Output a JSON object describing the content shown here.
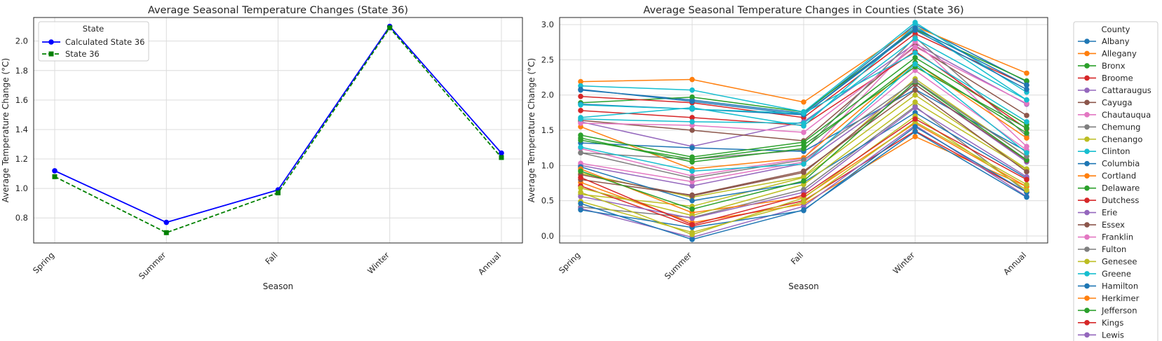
{
  "chart_data": [
    {
      "type": "line",
      "title": "Average Seasonal Temperature Changes (State 36)",
      "xlabel": "Season",
      "ylabel": "Average Temperature Change (°C)",
      "categories": [
        "Spring",
        "Summer",
        "Fall",
        "Winter",
        "Annual"
      ],
      "ylim": [
        0.63,
        2.16
      ],
      "yticks": [
        0.8,
        1.0,
        1.2,
        1.4,
        1.6,
        1.8,
        2.0
      ],
      "grid": true,
      "legend": {
        "title": "State",
        "placement": "top-left"
      },
      "series": [
        {
          "name": "Calculated State 36",
          "values": [
            1.12,
            0.77,
            0.99,
            2.1,
            1.24
          ],
          "color": "#0000ff",
          "marker": "circle",
          "dash": "solid"
        },
        {
          "name": "State 36",
          "values": [
            1.08,
            0.7,
            0.97,
            2.09,
            1.21
          ],
          "color": "#008000",
          "marker": "square",
          "dash": "dashed"
        }
      ]
    },
    {
      "type": "line",
      "title": "Average Seasonal Temperature Changes in Counties (State 36)",
      "xlabel": "Season",
      "ylabel": "Average Temperature Change (°C)",
      "categories": [
        "Spring",
        "Summer",
        "Fall",
        "Winter",
        "Annual"
      ],
      "ylim": [
        -0.1,
        3.1
      ],
      "yticks": [
        0.0,
        0.5,
        1.0,
        1.5,
        2.0,
        2.5,
        3.0
      ],
      "grid": true,
      "legend": {
        "title": "County",
        "placement": "outside-right"
      },
      "series": [
        {
          "name": "Albany",
          "values": [
            2.07,
            1.93,
            1.74,
            3.0,
            2.19
          ],
          "color": "#1f77b4"
        },
        {
          "name": "Allegany",
          "values": [
            2.19,
            2.22,
            1.9,
            2.97,
            2.31
          ],
          "color": "#ff7f0e"
        },
        {
          "name": "Bronx",
          "values": [
            1.89,
            1.97,
            1.76,
            2.93,
            2.2
          ],
          "color": "#2ca02c"
        },
        {
          "name": "Broome",
          "values": [
            1.98,
            1.89,
            1.68,
            2.87,
            2.14
          ],
          "color": "#d62728"
        },
        {
          "name": "Cattaraugus",
          "values": [
            1.62,
            1.27,
            1.62,
            2.73,
            1.87
          ],
          "color": "#9467bd"
        },
        {
          "name": "Cayuga",
          "values": [
            1.64,
            1.5,
            1.35,
            2.7,
            1.71
          ],
          "color": "#8c564b"
        },
        {
          "name": "Chautauqua",
          "values": [
            1.24,
            0.85,
            1.1,
            2.76,
            1.27
          ],
          "color": "#e377c2"
        },
        {
          "name": "Chemung",
          "values": [
            1.18,
            1.09,
            1.22,
            2.82,
            1.42
          ],
          "color": "#7f7f7f"
        },
        {
          "name": "Chenango",
          "values": [
            0.89,
            0.55,
            0.84,
            2.23,
            1.13
          ],
          "color": "#bcbd22"
        },
        {
          "name": "Clinton",
          "values": [
            2.13,
            2.07,
            1.76,
            3.03,
            2.04
          ],
          "color": "#17becf"
        },
        {
          "name": "Columbia",
          "values": [
            1.32,
            1.25,
            1.2,
            2.08,
            1.2
          ],
          "color": "#1f77b4"
        },
        {
          "name": "Cortland",
          "values": [
            1.55,
            0.95,
            1.11,
            2.46,
            1.39
          ],
          "color": "#ff7f0e"
        },
        {
          "name": "Delaware",
          "values": [
            1.43,
            1.12,
            1.33,
            2.53,
            1.58
          ],
          "color": "#2ca02c"
        },
        {
          "name": "Dutchess",
          "values": [
            1.78,
            1.68,
            1.57,
            2.62,
            1.52
          ],
          "color": "#d62728"
        },
        {
          "name": "Erie",
          "values": [
            1.0,
            0.71,
            1.03,
            2.15,
            1.05
          ],
          "color": "#9467bd"
        },
        {
          "name": "Essex",
          "values": [
            0.87,
            0.57,
            0.9,
            2.15,
            1.07
          ],
          "color": "#8c564b"
        },
        {
          "name": "Franklin",
          "values": [
            1.03,
            0.77,
            1.05,
            2.35,
            1.22
          ],
          "color": "#e377c2"
        },
        {
          "name": "Fulton",
          "values": [
            0.41,
            0.26,
            0.66,
            1.84,
            0.62
          ],
          "color": "#7f7f7f"
        },
        {
          "name": "Genesee",
          "values": [
            0.59,
            0.42,
            0.83,
            2.0,
            0.95
          ],
          "color": "#bcbd22"
        },
        {
          "name": "Greene",
          "values": [
            1.68,
            1.82,
            1.56,
            2.98,
            1.93
          ],
          "color": "#17becf"
        },
        {
          "name": "Hamilton",
          "values": [
            0.98,
            0.5,
            0.76,
            1.75,
            0.82
          ],
          "color": "#1f77b4"
        },
        {
          "name": "Herkimer",
          "values": [
            0.76,
            0.19,
            0.45,
            1.41,
            0.7
          ],
          "color": "#ff7f0e"
        },
        {
          "name": "Jefferson",
          "values": [
            1.39,
            1.05,
            1.24,
            2.46,
            1.46
          ],
          "color": "#2ca02c"
        },
        {
          "name": "Kings",
          "values": [
            0.71,
            0.14,
            0.5,
            1.49,
            0.62
          ],
          "color": "#d62728"
        },
        {
          "name": "Lewis",
          "values": [
            0.39,
            -0.02,
            0.42,
            1.57,
            0.56
          ],
          "color": "#9467bd"
        },
        {
          "name": "",
          "values": [
            1.87,
            1.8,
            1.72,
            2.92,
            2.08
          ],
          "color": "#1f77b4"
        },
        {
          "name": "",
          "values": [
            2.08,
            1.91,
            1.72,
            2.95,
            2.14
          ],
          "color": "#1f77b4"
        },
        {
          "name": "",
          "values": [
            1.6,
            1.57,
            1.47,
            2.68,
            1.88
          ],
          "color": "#e377c2"
        },
        {
          "name": "",
          "values": [
            1.86,
            1.8,
            1.74,
            2.6,
            1.62
          ],
          "color": "#17becf"
        },
        {
          "name": "",
          "values": [
            1.36,
            1.09,
            1.29,
            2.4,
            1.53
          ],
          "color": "#2ca02c"
        },
        {
          "name": "",
          "values": [
            1.66,
            1.62,
            1.6,
            2.8,
            1.93
          ],
          "color": "#17becf"
        },
        {
          "name": "",
          "values": [
            0.95,
            0.33,
            0.55,
            1.6,
            0.7
          ],
          "color": "#ff7f0e"
        },
        {
          "name": "",
          "values": [
            0.68,
            0.29,
            0.73,
            1.9,
            0.94
          ],
          "color": "#bcbd22"
        },
        {
          "name": "",
          "values": [
            0.8,
            0.58,
            0.92,
            2.07,
            0.91
          ],
          "color": "#8c564b"
        },
        {
          "name": "",
          "values": [
            0.92,
            0.38,
            0.78,
            2.19,
            1.08
          ],
          "color": "#2ca02c"
        },
        {
          "name": "",
          "values": [
            0.56,
            0.25,
            0.62,
            1.82,
            0.84
          ],
          "color": "#9467bd"
        },
        {
          "name": "",
          "values": [
            0.49,
            0.05,
            0.48,
            1.62,
            0.73
          ],
          "color": "#bcbd22"
        },
        {
          "name": "",
          "values": [
            0.37,
            0.12,
            0.36,
            1.55,
            0.62
          ],
          "color": "#1f77b4"
        },
        {
          "name": "",
          "values": [
            0.46,
            -0.05,
            0.37,
            1.48,
            0.55
          ],
          "color": "#1f77b4"
        },
        {
          "name": "",
          "values": [
            0.62,
            0.02,
            0.54,
            1.7,
            0.65
          ],
          "color": "#bcbd22"
        },
        {
          "name": "",
          "values": [
            1.18,
            0.82,
            1.08,
            2.2,
            1.13
          ],
          "color": "#7f7f7f"
        },
        {
          "name": "",
          "values": [
            1.26,
            0.92,
            1.02,
            2.44,
            1.18
          ],
          "color": "#17becf"
        },
        {
          "name": "",
          "values": [
            0.83,
            0.16,
            0.58,
            1.66,
            0.8
          ],
          "color": "#d62728"
        }
      ]
    }
  ],
  "legend_more_hint": ""
}
